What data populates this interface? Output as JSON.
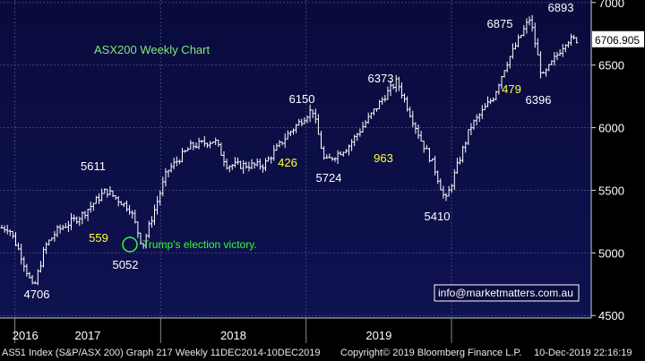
{
  "chart_data": {
    "type": "ohlc",
    "title": "ASX200 Weekly Chart",
    "x_tick_labels": [
      "2016",
      "2017",
      "2018",
      "2019"
    ],
    "y_ticks": [
      4500,
      5000,
      5500,
      6000,
      6500,
      7000
    ],
    "ylim": [
      4480,
      7020
    ],
    "last_value_label": "6706.905",
    "grid": true,
    "colors": {
      "background": "#0a0a3c",
      "grid": "#3c4478",
      "bars": "#ffffff",
      "accent_text": "#ffff33",
      "annotation": "#33ff33"
    },
    "weekly_close_approx": {
      "x": [
        "2015-12",
        "2016-01",
        "2016-02",
        "2016-03",
        "2016-04",
        "2016-06",
        "2016-08",
        "2016-10",
        "2016-11",
        "2017-01",
        "2017-03",
        "2017-05",
        "2017-06",
        "2017-09",
        "2017-11",
        "2018-01",
        "2018-02",
        "2018-04",
        "2018-07",
        "2018-08",
        "2018-10",
        "2018-11",
        "2018-12",
        "2019-02",
        "2019-04",
        "2019-05",
        "2019-07",
        "2019-08",
        "2019-10",
        "2019-12"
      ],
      "y": [
        5200,
        4980,
        4706,
        5050,
        5180,
        5300,
        5500,
        5350,
        5052,
        5650,
        5850,
        5900,
        5700,
        5700,
        5950,
        6150,
        5724,
        5850,
        6250,
        6373,
        5900,
        5700,
        5410,
        6000,
        6250,
        6500,
        6875,
        6396,
        6700,
        6707
      ]
    },
    "price_labels": [
      {
        "text": "4706",
        "value": 4706
      },
      {
        "text": "5611",
        "value": 5611
      },
      {
        "text": "5052",
        "value": 5052
      },
      {
        "text": "6150",
        "value": 6150
      },
      {
        "text": "5724",
        "value": 5724
      },
      {
        "text": "6373",
        "value": 6373
      },
      {
        "text": "5410",
        "value": 5410
      },
      {
        "text": "6875",
        "value": 6875
      },
      {
        "text": "6396",
        "value": 6396
      },
      {
        "text": "6893",
        "value": 6893
      }
    ],
    "move_labels": [
      "559",
      "426",
      "963",
      "479"
    ],
    "annotation": "Trump's election victory.",
    "watermark": "info@marketmatters.com.au"
  },
  "footer": {
    "left": "AS51 Index (S&P/ASX 200) Graph 217  Weekly 11DEC2014-10DEC2019",
    "middle": "Copyright© 2019 Bloomberg Finance L.P.",
    "right": "10-Dec-2019 22:16:19"
  }
}
